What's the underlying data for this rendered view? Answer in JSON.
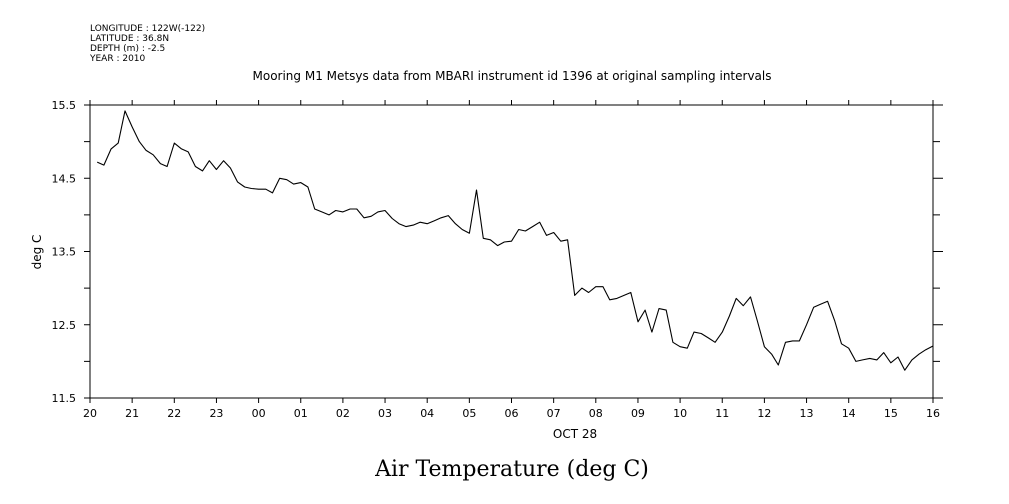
{
  "header": {
    "meta_lines": [
      "LONGITUDE : 122W(-122)",
      "LATITUDE : 36.8N",
      "DEPTH (m) : -2.5",
      "YEAR : 2010"
    ]
  },
  "chart_data": {
    "type": "line",
    "title": "Mooring M1 Metsys data from MBARI instrument id 1396 at original sampling intervals",
    "xlabel": "OCT 28",
    "ylabel": "deg C",
    "caption": "Air Temperature (deg C)",
    "ylim": [
      11.5,
      15.5
    ],
    "xlim": [
      20,
      40
    ],
    "x_tick_values": [
      20,
      21,
      22,
      23,
      24,
      25,
      26,
      27,
      28,
      29,
      30,
      31,
      32,
      33,
      34,
      35,
      36,
      37,
      38,
      39,
      40
    ],
    "x_tick_labels": [
      "20",
      "21",
      "22",
      "23",
      "00",
      "01",
      "02",
      "03",
      "04",
      "05",
      "06",
      "07",
      "08",
      "09",
      "10",
      "11",
      "12",
      "13",
      "14",
      "15",
      "16"
    ],
    "y_tick_values": [
      11.5,
      12.5,
      13.5,
      14.5,
      15.5
    ],
    "y_tick_labels": [
      "11.5",
      "12.5",
      "13.5",
      "14.5",
      "15.5"
    ],
    "y_minor_ticks": [
      12,
      13,
      14,
      15
    ],
    "series": [
      {
        "x": [
          20.17,
          20.33,
          20.5,
          20.67,
          20.83,
          21.0,
          21.17,
          21.33,
          21.5,
          21.67,
          21.83,
          22.0,
          22.17,
          22.33,
          22.5,
          22.67,
          22.83,
          23.0,
          23.17,
          23.33,
          23.5,
          23.67,
          23.83,
          24.0,
          24.17,
          24.33,
          24.5,
          24.67,
          24.83,
          25.0,
          25.17,
          25.33,
          25.5,
          25.67,
          25.83,
          26.0,
          26.17,
          26.33,
          26.5,
          26.67,
          26.83,
          27.0,
          27.17,
          27.33,
          27.5,
          27.67,
          27.83,
          28.0,
          28.17,
          28.33,
          28.5,
          28.67,
          28.83,
          29.0,
          29.17,
          29.33,
          29.5,
          29.67,
          29.83,
          30.0,
          30.17,
          30.33,
          30.5,
          30.67,
          30.83,
          31.0,
          31.17,
          31.33,
          31.5,
          31.67,
          31.83,
          32.0,
          32.17,
          32.33,
          32.5,
          32.67,
          32.83,
          33.0,
          33.17,
          33.33,
          33.5,
          33.67,
          33.83,
          34.0,
          34.17,
          34.33,
          34.5,
          34.67,
          34.83,
          35.0,
          35.17,
          35.33,
          35.5,
          35.67,
          35.83,
          36.0,
          36.17,
          36.33,
          36.5,
          36.67,
          36.83,
          37.0,
          37.17,
          37.33,
          37.5,
          37.67,
          37.83,
          38.0,
          38.17,
          38.33,
          38.5,
          38.67,
          38.83,
          39.0,
          39.17,
          39.33,
          39.5,
          39.67,
          39.83,
          40.0
        ],
        "y": [
          14.72,
          14.68,
          14.9,
          14.98,
          15.42,
          15.2,
          15.0,
          14.88,
          14.82,
          14.7,
          14.66,
          14.98,
          14.9,
          14.86,
          14.66,
          14.6,
          14.74,
          14.62,
          14.74,
          14.64,
          14.45,
          14.38,
          14.36,
          14.35,
          14.35,
          14.3,
          14.5,
          14.48,
          14.42,
          14.44,
          14.38,
          14.08,
          14.04,
          14.0,
          14.06,
          14.04,
          14.08,
          14.08,
          13.96,
          13.98,
          14.04,
          14.06,
          13.95,
          13.88,
          13.84,
          13.86,
          13.9,
          13.88,
          13.92,
          13.96,
          13.99,
          13.88,
          13.8,
          13.75,
          14.34,
          13.68,
          13.66,
          13.58,
          13.63,
          13.64,
          13.8,
          13.78,
          13.84,
          13.9,
          13.72,
          13.76,
          13.64,
          13.66,
          12.9,
          13.0,
          12.94,
          13.02,
          13.02,
          12.84,
          12.86,
          12.9,
          12.94,
          12.54,
          12.7,
          12.4,
          12.72,
          12.7,
          12.26,
          12.2,
          12.18,
          12.4,
          12.38,
          12.32,
          12.26,
          12.4,
          12.62,
          12.86,
          12.76,
          12.88,
          12.56,
          12.2,
          12.1,
          11.95,
          12.26,
          12.28,
          12.28,
          12.5,
          12.74,
          12.78,
          12.82,
          12.55,
          12.24,
          12.18,
          12.0,
          12.02,
          12.04,
          12.02,
          12.12,
          11.98,
          12.06,
          11.88,
          12.02,
          12.1,
          12.16,
          12.21
        ]
      }
    ]
  }
}
